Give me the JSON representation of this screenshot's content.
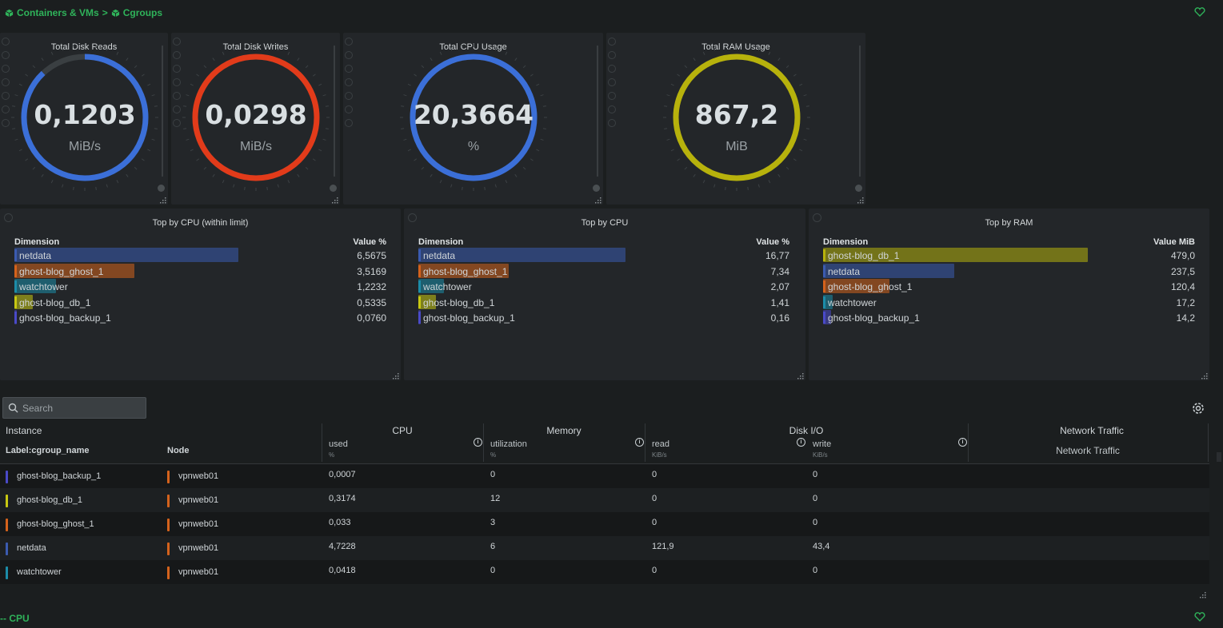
{
  "breadcrumb": {
    "item1": "Containers & VMs",
    "separator": ">",
    "item2": "Cgroups"
  },
  "gauges": [
    {
      "title": "Total Disk Reads",
      "value": "0,1203",
      "unit": "MiB/s",
      "color": "#3b6fd8",
      "fill": 0.88
    },
    {
      "title": "Total Disk Writes",
      "value": "0,0298",
      "unit": "MiB/s",
      "color": "#e23b1a",
      "fill": 1.0
    },
    {
      "title": "Total CPU Usage",
      "value": "20,3664",
      "unit": "%",
      "color": "#3b6fd8",
      "fill": 1.0
    },
    {
      "title": "Total RAM Usage",
      "value": "867,2",
      "unit": "MiB",
      "color": "#b7b20c",
      "fill": 1.0
    }
  ],
  "top_lists": [
    {
      "title": "Top by CPU (within limit)",
      "dim_header": "Dimension",
      "val_header": "Value %",
      "rows": [
        {
          "label": "netdata",
          "value": "6,5675",
          "color": "#3b5bb0",
          "fill": 1.0
        },
        {
          "label": "ghost-blog_ghost_1",
          "value": "3,5169",
          "color": "#d4621c",
          "fill": 0.535
        },
        {
          "label": "watchtower",
          "value": "1,2232",
          "color": "#1c8ca8",
          "fill": 0.186
        },
        {
          "label": "ghost-blog_db_1",
          "value": "0,5335",
          "color": "#c8c812",
          "fill": 0.081
        },
        {
          "label": "ghost-blog_backup_1",
          "value": "0,0760",
          "color": "#4a4ac8",
          "fill": 0.012
        }
      ]
    },
    {
      "title": "Top by CPU",
      "dim_header": "Dimension",
      "val_header": "Value %",
      "rows": [
        {
          "label": "netdata",
          "value": "16,77",
          "color": "#3b5bb0",
          "fill": 1.0
        },
        {
          "label": "ghost-blog_ghost_1",
          "value": "7,34",
          "color": "#d4621c",
          "fill": 0.438
        },
        {
          "label": "watchtower",
          "value": "2,07",
          "color": "#1c8ca8",
          "fill": 0.123
        },
        {
          "label": "ghost-blog_db_1",
          "value": "1,41",
          "color": "#c8c812",
          "fill": 0.084
        },
        {
          "label": "ghost-blog_backup_1",
          "value": "0,16",
          "color": "#4a4ac8",
          "fill": 0.01
        }
      ]
    },
    {
      "title": "Top by RAM",
      "dim_header": "Dimension",
      "val_header": "Value MiB",
      "rows": [
        {
          "label": "ghost-blog_db_1",
          "value": "479,0",
          "color": "#b7b20c",
          "fill": 1.0
        },
        {
          "label": "netdata",
          "value": "237,5",
          "color": "#3b5bb0",
          "fill": 0.496
        },
        {
          "label": "ghost-blog_ghost_1",
          "value": "120,4",
          "color": "#d4621c",
          "fill": 0.251
        },
        {
          "label": "watchtower",
          "value": "17,2",
          "color": "#1c8ca8",
          "fill": 0.036
        },
        {
          "label": "ghost-blog_backup_1",
          "value": "14,2",
          "color": "#4a4ac8",
          "fill": 0.03
        }
      ]
    }
  ],
  "search": {
    "placeholder": "Search"
  },
  "table": {
    "instance_header": "Instance",
    "label_header": "Label:cgroup_name",
    "node_header": "Node",
    "groups": [
      {
        "name": "CPU",
        "sub": "used",
        "unit": "%"
      },
      {
        "name": "Memory",
        "sub": "utilization",
        "unit": "%"
      },
      {
        "name": "Disk I/O",
        "sub": "read",
        "unit": "KiB/s",
        "sub2": "write",
        "unit2": "KiB/s"
      },
      {
        "name": "Network Traffic",
        "sub": "Network Traffic"
      }
    ],
    "rows": [
      {
        "name": "ghost-blog_backup_1",
        "color": "#4a4ac8",
        "node": "vpnweb01",
        "node_color": "#d4621c",
        "cpu": "0,0007",
        "mem": "0",
        "read": "0",
        "write": "0"
      },
      {
        "name": "ghost-blog_db_1",
        "color": "#c8c812",
        "node": "vpnweb01",
        "node_color": "#d4621c",
        "cpu": "0,3174",
        "mem": "12",
        "read": "0",
        "write": "0"
      },
      {
        "name": "ghost-blog_ghost_1",
        "color": "#d4621c",
        "node": "vpnweb01",
        "node_color": "#d4621c",
        "cpu": "0,033",
        "mem": "3",
        "read": "0",
        "write": "0"
      },
      {
        "name": "netdata",
        "color": "#3b5bb0",
        "node": "vpnweb01",
        "node_color": "#d4621c",
        "cpu": "4,7228",
        "mem": "6",
        "read": "121,9",
        "write": "43,4"
      },
      {
        "name": "watchtower",
        "color": "#1c8ca8",
        "node": "vpnweb01",
        "node_color": "#d4621c",
        "cpu": "0,0418",
        "mem": "0",
        "read": "0",
        "write": "0"
      }
    ]
  },
  "section_cpu": {
    "label": "-- CPU"
  },
  "icons": {
    "cube": "cube-icon",
    "heart": "heart-icon",
    "search": "search-icon",
    "settings": "gear-icon"
  }
}
